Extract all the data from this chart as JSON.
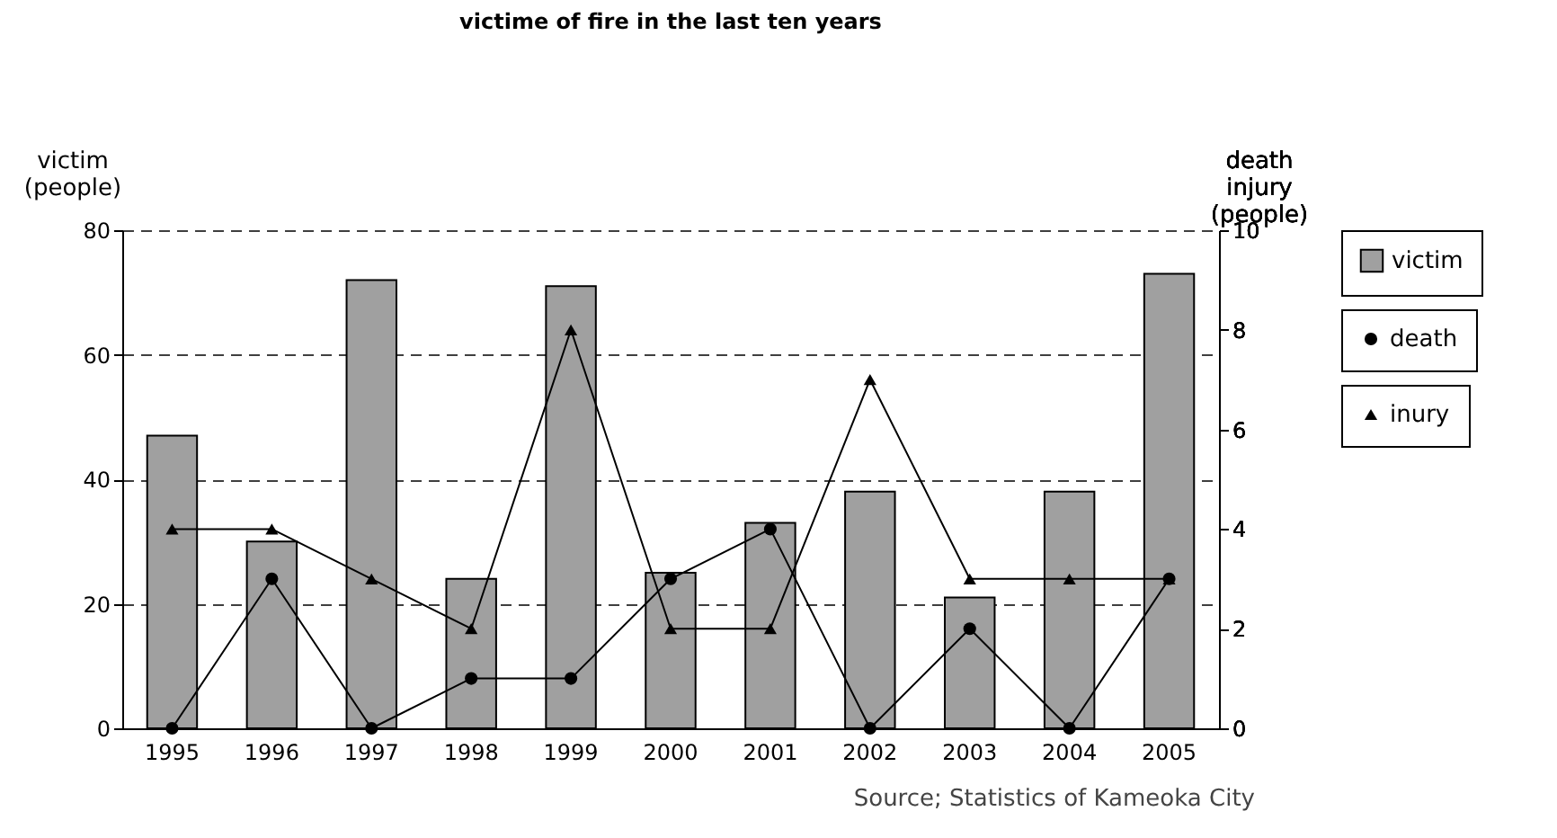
{
  "chart_data": {
    "type": "bar",
    "title": "victime of fire in the last ten years",
    "ylabel": "victim\n(people)",
    "y2label": "death\ninjury\n(people)",
    "categories": [
      "1995",
      "1996",
      "1997",
      "1998",
      "1999",
      "2000",
      "2001",
      "2002",
      "2003",
      "2004",
      "2005"
    ],
    "series": [
      {
        "name": "victim",
        "color": "#a0a0a0",
        "values": [
          47,
          30,
          72,
          24,
          71,
          25,
          33,
          38,
          21,
          38,
          73
        ]
      },
      {
        "name": "death",
        "type": "line",
        "axis": "y2",
        "color": "#000000",
        "marker": "circle",
        "values": [
          0,
          3,
          0,
          1,
          1,
          3,
          4,
          0,
          2,
          0,
          3
        ]
      },
      {
        "name": "inury",
        "type": "line",
        "axis": "y2",
        "color": "#000000",
        "marker": "triangle",
        "values": [
          4,
          4,
          3,
          2,
          8,
          2,
          2,
          7,
          3,
          3,
          3
        ]
      }
    ],
    "ylim": [
      0,
      80
    ],
    "yticks": [
      0,
      20,
      40,
      60,
      80
    ],
    "y2lim": [
      0,
      10
    ],
    "y2ticks": [
      0,
      2,
      4,
      6,
      8,
      10
    ],
    "grid": "y",
    "legend": "right",
    "line_style": "solid",
    "annotations": [
      "Source; Statistics of Kameoka City"
    ]
  }
}
